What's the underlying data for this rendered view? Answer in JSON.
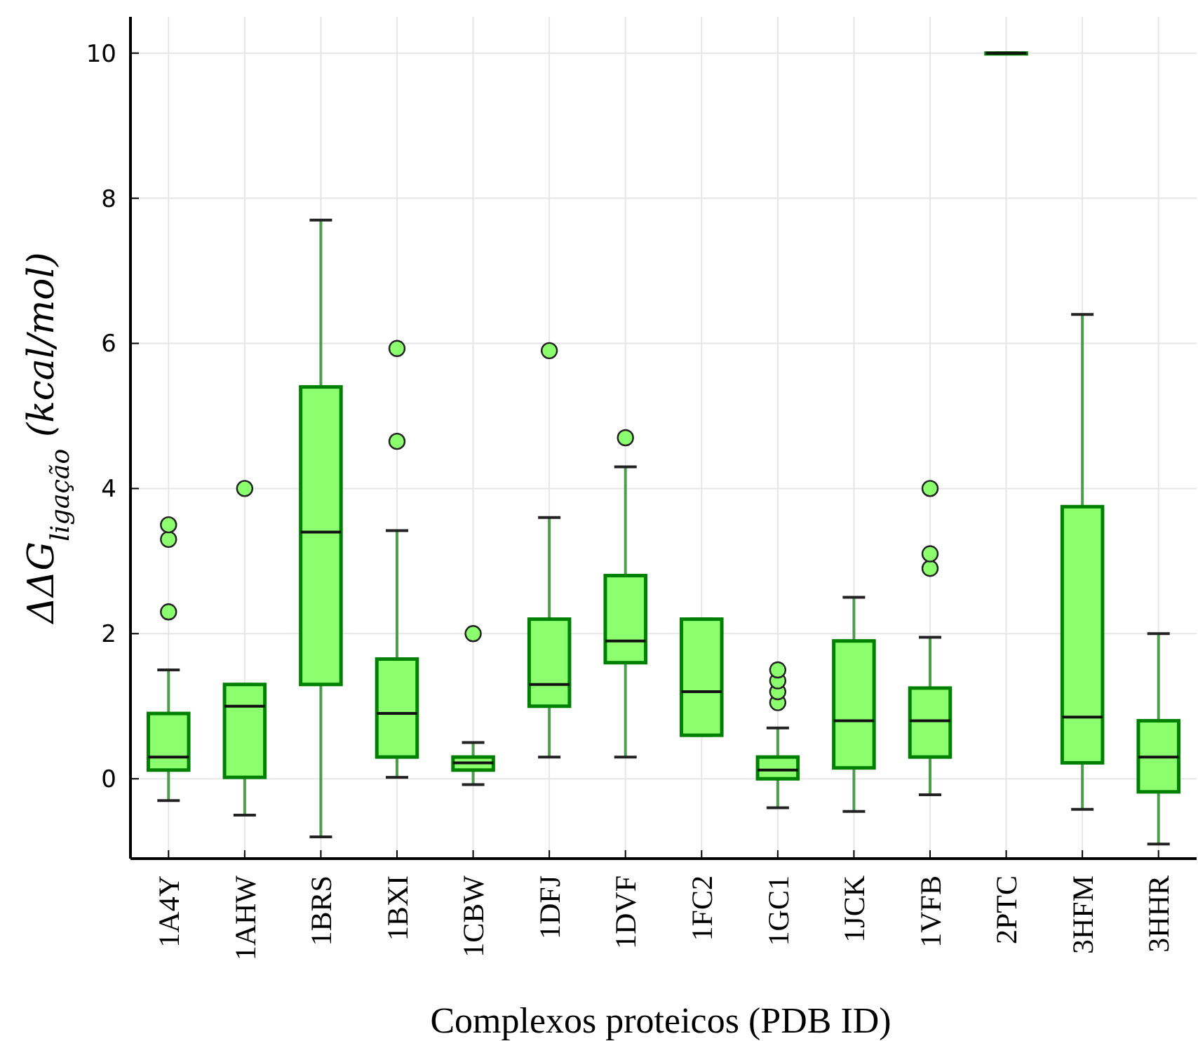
{
  "chart_data": {
    "type": "box",
    "xlabel": "Complexos proteicos (PDB ID)",
    "ylabel": "ΔΔG$_{ligação}$ (kcal/mol)",
    "categories": [
      "1A4Y",
      "1AHW",
      "1BRS",
      "1BXI",
      "1CBW",
      "1DFJ",
      "1DVF",
      "1FC2",
      "1GC1",
      "1JCK",
      "1VFB",
      "2PTC",
      "3HFM",
      "3HHR"
    ],
    "ylim": [
      -1.1,
      10.5
    ],
    "yticks": [
      0,
      2,
      4,
      6,
      8,
      10
    ],
    "grid": true,
    "color": "#8cff6e",
    "boxes": [
      {
        "low": -0.3,
        "q1": 0.12,
        "median": 0.3,
        "q3": 0.9,
        "high": 1.5,
        "outliers": [
          2.3,
          3.3,
          3.5
        ]
      },
      {
        "low": -0.5,
        "q1": 0.02,
        "median": 1.0,
        "q3": 1.3,
        "high": 1.3,
        "outliers": [
          4.0
        ]
      },
      {
        "low": -0.8,
        "q1": 1.3,
        "median": 3.4,
        "q3": 5.4,
        "high": 7.7
      },
      {
        "low": 0.02,
        "q1": 0.3,
        "median": 0.9,
        "q3": 1.65,
        "high": 3.42,
        "outliers": [
          4.65,
          5.93
        ]
      },
      {
        "low": -0.08,
        "q1": 0.12,
        "median": 0.22,
        "q3": 0.3,
        "high": 0.5,
        "outliers": [
          2.0
        ]
      },
      {
        "low": 0.3,
        "q1": 1.0,
        "median": 1.3,
        "q3": 2.2,
        "high": 3.6,
        "outliers": [
          5.9
        ]
      },
      {
        "low": 0.3,
        "q1": 1.6,
        "median": 1.9,
        "q3": 2.8,
        "high": 4.3,
        "outliers": [
          4.7
        ]
      },
      {
        "low": 0.6,
        "q1": 0.6,
        "median": 1.2,
        "q3": 2.2,
        "high": 2.2
      },
      {
        "low": -0.4,
        "q1": 0.0,
        "median": 0.12,
        "q3": 0.3,
        "high": 0.7,
        "outliers": [
          1.05,
          1.2,
          1.35,
          1.5
        ]
      },
      {
        "low": -0.45,
        "q1": 0.15,
        "median": 0.8,
        "q3": 1.9,
        "high": 2.5
      },
      {
        "low": -0.22,
        "q1": 0.3,
        "median": 0.8,
        "q3": 1.25,
        "high": 1.95,
        "outliers": [
          2.9,
          3.1,
          4.0
        ]
      },
      {
        "low": 10,
        "q1": 10,
        "median": 10,
        "q3": 10,
        "high": 10
      },
      {
        "low": -0.42,
        "q1": 0.22,
        "median": 0.85,
        "q3": 3.75,
        "high": 6.4
      },
      {
        "low": -0.9,
        "q1": -0.18,
        "median": 0.3,
        "q3": 0.8,
        "high": 2.0
      }
    ]
  }
}
